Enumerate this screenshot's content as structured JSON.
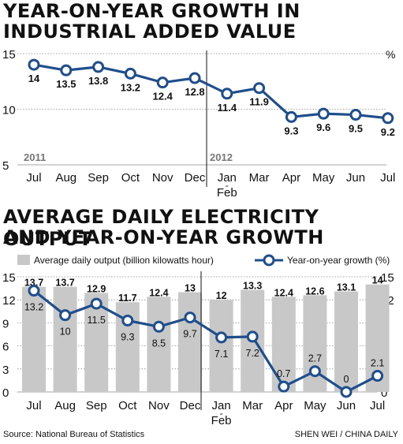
{
  "titles": {
    "chart1_line1": "YEAR-ON-YEAR GROWTH IN",
    "chart1_line2": "INDUSTRIAL ADDED VALUE",
    "chart2_line1": "AVERAGE DAILY ELECTRICITY OUTPUT",
    "chart2_line2": "AND YEAR-ON-YEAR GROWTH"
  },
  "footer": {
    "source": "Source: National Bureau of Statistics",
    "credit": "SHEN WEI / CHINA DAILY"
  },
  "colors": {
    "line": "#1f4e8c",
    "bar": "#c8c8c8",
    "text": "#111111"
  },
  "chart_data": [
    {
      "type": "line",
      "title": "YEAR-ON-YEAR GROWTH IN INDUSTRIAL ADDED VALUE",
      "categories": [
        "Jul",
        "Aug",
        "Sep",
        "Oct",
        "Nov",
        "Dec",
        "Jan-Feb",
        "Mar",
        "Apr",
        "May",
        "Jun",
        "Jul"
      ],
      "category_labels": [
        [
          "Jul"
        ],
        [
          "Aug"
        ],
        [
          "Sep"
        ],
        [
          "Oct"
        ],
        [
          "Nov"
        ],
        [
          "Dec"
        ],
        [
          "Jan",
          "-",
          "Feb"
        ],
        [
          "Mar"
        ],
        [
          "Apr"
        ],
        [
          "May"
        ],
        [
          "Jun"
        ],
        [
          "Jul"
        ]
      ],
      "values": [
        14,
        13.5,
        13.8,
        13.2,
        12.4,
        12.8,
        11.4,
        11.9,
        9.3,
        9.6,
        9.5,
        9.2
      ],
      "value_labels": [
        "14",
        "13.5",
        "13.8",
        "13.2",
        "12.4",
        "12.8",
        "11.4",
        "11.9",
        "9.3",
        "9.6",
        "9.5",
        "9.2"
      ],
      "ylim": [
        5,
        15
      ],
      "yticks": [
        "5",
        "10",
        "15"
      ],
      "unit": "%",
      "year_labels": [
        "2011",
        "2012"
      ],
      "grid": true
    },
    {
      "type": "bar",
      "title": "AVERAGE DAILY ELECTRICITY OUTPUT AND YEAR-ON-YEAR GROWTH",
      "categories": [
        "Jul",
        "Aug",
        "Sep",
        "Oct",
        "Nov",
        "Dec",
        "Jan-Feb",
        "Mar",
        "Apr",
        "May",
        "Jun",
        "Jul"
      ],
      "category_labels": [
        [
          "Jul"
        ],
        [
          "Aug"
        ],
        [
          "Sep"
        ],
        [
          "Oct"
        ],
        [
          "Nov"
        ],
        [
          "Dec"
        ],
        [
          "Jan",
          "-",
          "Feb"
        ],
        [
          "Mar"
        ],
        [
          "Apr"
        ],
        [
          "May"
        ],
        [
          "Jun"
        ],
        [
          "Jul"
        ]
      ],
      "series": [
        {
          "name": "Average daily output (billion kilowatts hour)",
          "type": "bar",
          "values": [
            13.7,
            13.7,
            12.9,
            11.7,
            12.4,
            13,
            12,
            13.3,
            12.4,
            12.6,
            13.1,
            14
          ],
          "labels": [
            "13.7",
            "13.7",
            "12.9",
            "11.7",
            "12.4",
            "13",
            "12",
            "13.3",
            "12.4",
            "12.6",
            "13.1",
            "14"
          ]
        },
        {
          "name": "Year-on-year growth (%)",
          "type": "line",
          "values": [
            13.2,
            10,
            11.5,
            9.3,
            8.5,
            9.7,
            7.1,
            7.2,
            0.7,
            2.7,
            0,
            2.1
          ],
          "labels": [
            "13.2",
            "10",
            "11.5",
            "9.3",
            "8.5",
            "9.7",
            "7.1",
            "7.2",
            "0.7",
            "2.7",
            "0",
            "2.1"
          ]
        }
      ],
      "ylim": [
        0,
        15
      ],
      "yticks": [
        "0",
        "3",
        "6",
        "9",
        "12",
        "15"
      ],
      "legend": "top"
    }
  ]
}
